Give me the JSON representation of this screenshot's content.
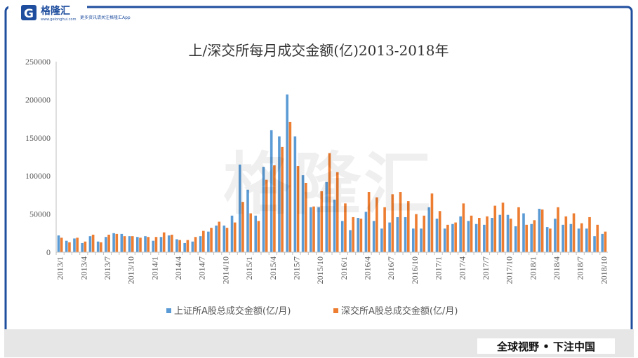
{
  "brand": {
    "logo_text": "格隆汇",
    "logo_domain": "www.gelonghui.com",
    "tagline": "更多资讯请关注格隆汇App",
    "slogan": "全球视野 • 下注中国",
    "watermark": "格隆汇"
  },
  "colors": {
    "brand_blue": "#1f4e9e",
    "sse": "#5b9bd5",
    "szse": "#ed7d31",
    "axis_text": "#595959",
    "grid": "#d9d9d9"
  },
  "chart_data": {
    "type": "bar",
    "title": "上/深交所每月成交金额(亿)2013-2018年",
    "xlabel": "",
    "ylabel": "",
    "ylim": [
      0,
      250000
    ],
    "yticks": [
      0,
      50000,
      100000,
      150000,
      200000,
      250000
    ],
    "grid": "horizontal-off",
    "legend_position": "bottom",
    "categories": [
      "2013/1",
      "2013/2",
      "2013/3",
      "2013/4",
      "2013/5",
      "2013/6",
      "2013/7",
      "2013/8",
      "2013/9",
      "2013/10",
      "2013/11",
      "2013/12",
      "2014/1",
      "2014/2",
      "2014/3",
      "2014/4",
      "2014/5",
      "2014/6",
      "2014/7",
      "2014/8",
      "2014/9",
      "2014/10",
      "2014/11",
      "2014/12",
      "2015/1",
      "2015/2",
      "2015/3",
      "2015/4",
      "2015/5",
      "2015/6",
      "2015/7",
      "2015/8",
      "2015/9",
      "2015/10",
      "2015/11",
      "2015/12",
      "2016/1",
      "2016/2",
      "2016/3",
      "2016/4",
      "2016/5",
      "2016/6",
      "2016/7",
      "2016/8",
      "2016/9",
      "2016/10",
      "2016/11",
      "2016/12",
      "2017/1",
      "2017/2",
      "2017/3",
      "2017/4",
      "2017/5",
      "2017/6",
      "2017/7",
      "2017/8",
      "2017/9",
      "2017/10",
      "2017/11",
      "2017/12",
      "2018/1",
      "2018/2",
      "2018/3",
      "2018/4",
      "2018/5",
      "2018/6",
      "2018/7",
      "2018/8",
      "2018/9",
      "2018/10"
    ],
    "tick_labels": [
      "2013/1",
      "2013/4",
      "2013/7",
      "2013/10",
      "2014/1",
      "2014/4",
      "2014/7",
      "2014/10",
      "2015/1",
      "2015/4",
      "2015/7",
      "2015/10",
      "2016/1",
      "2016/4",
      "2016/7",
      "2016/10",
      "2017/1",
      "2017/4",
      "2017/7",
      "2017/10",
      "2018/1",
      "2018/4",
      "2018/7",
      "2018/10"
    ],
    "series": [
      {
        "name": "上证所A股总成交金额(亿/月)",
        "color": "#5b9bd5",
        "values": [
          22000,
          15000,
          18000,
          12000,
          21000,
          14000,
          20000,
          25000,
          24000,
          21000,
          20000,
          21000,
          15000,
          20000,
          22000,
          17000,
          12000,
          14000,
          21000,
          27000,
          35000,
          35000,
          48000,
          115000,
          82000,
          48000,
          112000,
          160000,
          152000,
          207000,
          152000,
          101000,
          59000,
          59000,
          92000,
          69000,
          41000,
          29000,
          45000,
          53000,
          41000,
          31000,
          39000,
          46000,
          46000,
          31000,
          31000,
          59000,
          44000,
          31000,
          37000,
          47000,
          41000,
          37000,
          36000,
          45000,
          49000,
          49000,
          34000,
          51000,
          37000,
          57000,
          33000,
          44000,
          36000,
          37000,
          31000,
          31000,
          21000,
          24000
        ]
      },
      {
        "name": "深交所A股总成交金额(亿/月)",
        "color": "#ed7d31",
        "values": [
          19000,
          13000,
          19000,
          14000,
          23000,
          13000,
          23000,
          24000,
          21000,
          21000,
          19000,
          20000,
          20000,
          26000,
          23000,
          16000,
          16000,
          20000,
          28000,
          32000,
          40000,
          32000,
          39000,
          66000,
          51000,
          41000,
          95000,
          114000,
          138000,
          171000,
          113000,
          91000,
          60000,
          80000,
          130000,
          105000,
          64000,
          46000,
          44000,
          79000,
          72000,
          59000,
          76000,
          79000,
          67000,
          50000,
          48000,
          77000,
          54000,
          36000,
          39000,
          64000,
          48000,
          45000,
          47000,
          61000,
          65000,
          44000,
          59000,
          36000,
          42000,
          56000,
          31000,
          59000,
          47000,
          51000,
          38000,
          46000,
          36000,
          27000
        ]
      }
    ]
  }
}
